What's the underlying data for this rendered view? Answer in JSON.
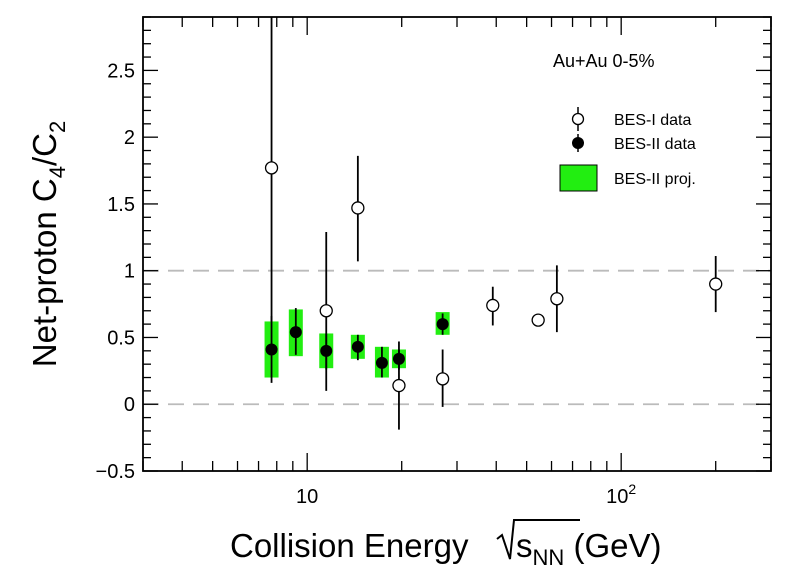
{
  "chart_data": {
    "type": "scatter",
    "xscale": "log",
    "xlim": [
      3,
      300
    ],
    "ylim": [
      -0.5,
      2.9
    ],
    "grid": false,
    "reference_lines_y": [
      0,
      1
    ],
    "x_ticks": [
      {
        "value": 10,
        "label": "10"
      },
      {
        "value": 100,
        "label": "10",
        "sup": "2"
      }
    ],
    "y_ticks": [
      {
        "value": -0.5,
        "label": "−0.5"
      },
      {
        "value": 0,
        "label": "0"
      },
      {
        "value": 0.5,
        "label": "0.5"
      },
      {
        "value": 1,
        "label": "1"
      },
      {
        "value": 1.5,
        "label": "1.5"
      },
      {
        "value": 2,
        "label": "2"
      },
      {
        "value": 2.5,
        "label": "2.5"
      }
    ],
    "xlabel": {
      "main": "Collision Energy ",
      "sub": "NN",
      "base": "s",
      "unit": " (GeV)"
    },
    "ylabel": {
      "pre": "Net-proton C",
      "sub1": "4",
      "mid": "/C",
      "sub2": "2"
    },
    "legend": {
      "header": "Au+Au 0-5%",
      "placement": "top-right",
      "entries": [
        "BES-I data",
        "BES-II data",
        "BES-II proj."
      ]
    },
    "series": [
      {
        "name": "BES-I data",
        "marker": "open-circle",
        "points": [
          {
            "x": 7.7,
            "y": 1.77,
            "lo": 0.62,
            "hi": 2.9
          },
          {
            "x": 11.5,
            "y": 0.7,
            "lo": 0.1,
            "hi": 1.29
          },
          {
            "x": 14.5,
            "y": 1.47,
            "lo": 1.07,
            "hi": 1.86
          },
          {
            "x": 19.6,
            "y": 0.14,
            "lo": -0.19,
            "hi": 0.47
          },
          {
            "x": 27,
            "y": 0.19,
            "lo": -0.02,
            "hi": 0.41
          },
          {
            "x": 39,
            "y": 0.74,
            "lo": 0.59,
            "hi": 0.88
          },
          {
            "x": 54.4,
            "y": 0.63,
            "lo": 0.59,
            "hi": 0.67
          },
          {
            "x": 62.4,
            "y": 0.79,
            "lo": 0.54,
            "hi": 1.04
          },
          {
            "x": 200,
            "y": 0.9,
            "lo": 0.69,
            "hi": 1.11
          }
        ]
      },
      {
        "name": "BES-II data",
        "marker": "filled-circle",
        "points": [
          {
            "x": 7.7,
            "y": 0.41,
            "lo": 0.16,
            "hi": 0.66
          },
          {
            "x": 9.2,
            "y": 0.54,
            "lo": 0.37,
            "hi": 0.72
          },
          {
            "x": 11.5,
            "y": 0.4,
            "lo": 0.26,
            "hi": 0.53
          },
          {
            "x": 14.5,
            "y": 0.43,
            "lo": 0.33,
            "hi": 0.52
          },
          {
            "x": 17.3,
            "y": 0.31,
            "lo": 0.2,
            "hi": 0.43
          },
          {
            "x": 19.6,
            "y": 0.34,
            "lo": 0.26,
            "hi": 0.41
          },
          {
            "x": 27,
            "y": 0.6,
            "lo": 0.52,
            "hi": 0.68
          }
        ]
      },
      {
        "name": "BES-II proj.",
        "marker": "box",
        "color": "#22ee11",
        "points": [
          {
            "x": 7.7,
            "lo": 0.2,
            "hi": 0.62
          },
          {
            "x": 9.2,
            "lo": 0.36,
            "hi": 0.71
          },
          {
            "x": 11.5,
            "lo": 0.27,
            "hi": 0.53
          },
          {
            "x": 14.5,
            "lo": 0.34,
            "hi": 0.52
          },
          {
            "x": 17.3,
            "lo": 0.2,
            "hi": 0.43
          },
          {
            "x": 19.6,
            "lo": 0.27,
            "hi": 0.41
          },
          {
            "x": 27,
            "lo": 0.52,
            "hi": 0.69
          }
        ]
      }
    ]
  }
}
